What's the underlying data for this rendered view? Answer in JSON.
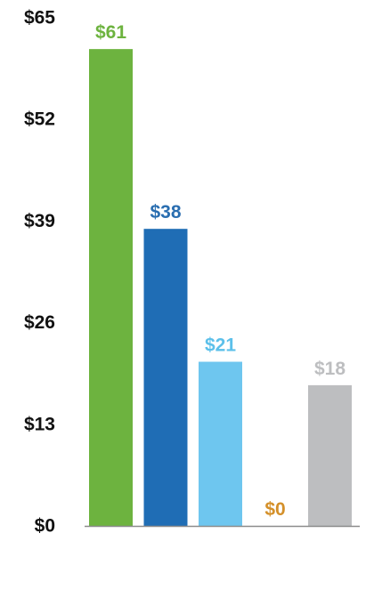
{
  "chart_data": {
    "type": "bar",
    "categories": [
      "",
      "",
      "",
      "",
      ""
    ],
    "values": [
      61,
      38,
      21,
      0,
      18
    ],
    "value_labels": [
      "$61",
      "$38",
      "$21",
      "$0",
      "$18"
    ],
    "colors": [
      "#6DB33F",
      "#1F6DB5",
      "#6EC6EF",
      "#D4902A",
      "#BDBEC0"
    ],
    "label_colors": [
      "#6DB33F",
      "#2A6EB0",
      "#5CC0EA",
      "#D4902A",
      "#BDBEC0"
    ],
    "y_ticks": [
      0,
      13,
      26,
      39,
      52,
      65
    ],
    "y_tick_labels": [
      "$0",
      "$13",
      "$26",
      "$39",
      "$52",
      "$65"
    ],
    "ylim": [
      0,
      65
    ],
    "title": "",
    "xlabel": "",
    "ylabel": "",
    "grid": false,
    "legend": "none",
    "axis_color": "#8C8C8C"
  }
}
